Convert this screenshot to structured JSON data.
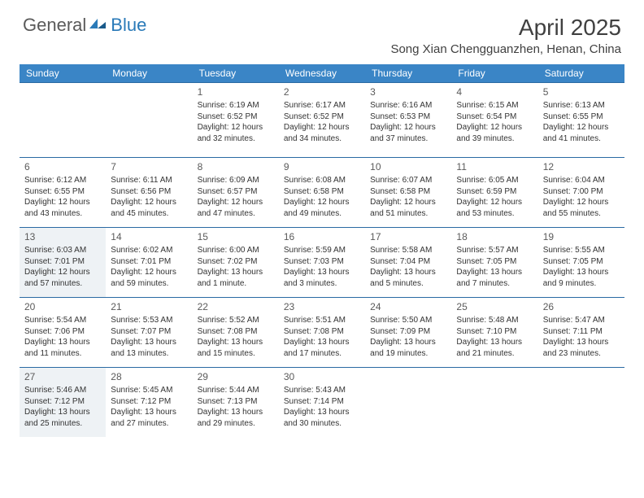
{
  "logo": {
    "general": "General",
    "blue": "Blue"
  },
  "title": "April 2025",
  "subtitle": "Song Xian Chengguanzhen, Henan, China",
  "colors": {
    "header_bg": "#3a85c6",
    "border": "#2a6aa3",
    "highlight_bg": "#eef2f5",
    "text": "#333333",
    "title_text": "#404040"
  },
  "day_headers": [
    "Sunday",
    "Monday",
    "Tuesday",
    "Wednesday",
    "Thursday",
    "Friday",
    "Saturday"
  ],
  "weeks": [
    [
      null,
      null,
      {
        "n": "1",
        "sr": "Sunrise: 6:19 AM",
        "ss": "Sunset: 6:52 PM",
        "dl": "Daylight: 12 hours and 32 minutes."
      },
      {
        "n": "2",
        "sr": "Sunrise: 6:17 AM",
        "ss": "Sunset: 6:52 PM",
        "dl": "Daylight: 12 hours and 34 minutes."
      },
      {
        "n": "3",
        "sr": "Sunrise: 6:16 AM",
        "ss": "Sunset: 6:53 PM",
        "dl": "Daylight: 12 hours and 37 minutes."
      },
      {
        "n": "4",
        "sr": "Sunrise: 6:15 AM",
        "ss": "Sunset: 6:54 PM",
        "dl": "Daylight: 12 hours and 39 minutes."
      },
      {
        "n": "5",
        "sr": "Sunrise: 6:13 AM",
        "ss": "Sunset: 6:55 PM",
        "dl": "Daylight: 12 hours and 41 minutes."
      }
    ],
    [
      {
        "n": "6",
        "sr": "Sunrise: 6:12 AM",
        "ss": "Sunset: 6:55 PM",
        "dl": "Daylight: 12 hours and 43 minutes."
      },
      {
        "n": "7",
        "sr": "Sunrise: 6:11 AM",
        "ss": "Sunset: 6:56 PM",
        "dl": "Daylight: 12 hours and 45 minutes."
      },
      {
        "n": "8",
        "sr": "Sunrise: 6:09 AM",
        "ss": "Sunset: 6:57 PM",
        "dl": "Daylight: 12 hours and 47 minutes."
      },
      {
        "n": "9",
        "sr": "Sunrise: 6:08 AM",
        "ss": "Sunset: 6:58 PM",
        "dl": "Daylight: 12 hours and 49 minutes."
      },
      {
        "n": "10",
        "sr": "Sunrise: 6:07 AM",
        "ss": "Sunset: 6:58 PM",
        "dl": "Daylight: 12 hours and 51 minutes."
      },
      {
        "n": "11",
        "sr": "Sunrise: 6:05 AM",
        "ss": "Sunset: 6:59 PM",
        "dl": "Daylight: 12 hours and 53 minutes."
      },
      {
        "n": "12",
        "sr": "Sunrise: 6:04 AM",
        "ss": "Sunset: 7:00 PM",
        "dl": "Daylight: 12 hours and 55 minutes."
      }
    ],
    [
      {
        "n": "13",
        "sr": "Sunrise: 6:03 AM",
        "ss": "Sunset: 7:01 PM",
        "dl": "Daylight: 12 hours and 57 minutes.",
        "hl": true
      },
      {
        "n": "14",
        "sr": "Sunrise: 6:02 AM",
        "ss": "Sunset: 7:01 PM",
        "dl": "Daylight: 12 hours and 59 minutes."
      },
      {
        "n": "15",
        "sr": "Sunrise: 6:00 AM",
        "ss": "Sunset: 7:02 PM",
        "dl": "Daylight: 13 hours and 1 minute."
      },
      {
        "n": "16",
        "sr": "Sunrise: 5:59 AM",
        "ss": "Sunset: 7:03 PM",
        "dl": "Daylight: 13 hours and 3 minutes."
      },
      {
        "n": "17",
        "sr": "Sunrise: 5:58 AM",
        "ss": "Sunset: 7:04 PM",
        "dl": "Daylight: 13 hours and 5 minutes."
      },
      {
        "n": "18",
        "sr": "Sunrise: 5:57 AM",
        "ss": "Sunset: 7:05 PM",
        "dl": "Daylight: 13 hours and 7 minutes."
      },
      {
        "n": "19",
        "sr": "Sunrise: 5:55 AM",
        "ss": "Sunset: 7:05 PM",
        "dl": "Daylight: 13 hours and 9 minutes."
      }
    ],
    [
      {
        "n": "20",
        "sr": "Sunrise: 5:54 AM",
        "ss": "Sunset: 7:06 PM",
        "dl": "Daylight: 13 hours and 11 minutes."
      },
      {
        "n": "21",
        "sr": "Sunrise: 5:53 AM",
        "ss": "Sunset: 7:07 PM",
        "dl": "Daylight: 13 hours and 13 minutes."
      },
      {
        "n": "22",
        "sr": "Sunrise: 5:52 AM",
        "ss": "Sunset: 7:08 PM",
        "dl": "Daylight: 13 hours and 15 minutes."
      },
      {
        "n": "23",
        "sr": "Sunrise: 5:51 AM",
        "ss": "Sunset: 7:08 PM",
        "dl": "Daylight: 13 hours and 17 minutes."
      },
      {
        "n": "24",
        "sr": "Sunrise: 5:50 AM",
        "ss": "Sunset: 7:09 PM",
        "dl": "Daylight: 13 hours and 19 minutes."
      },
      {
        "n": "25",
        "sr": "Sunrise: 5:48 AM",
        "ss": "Sunset: 7:10 PM",
        "dl": "Daylight: 13 hours and 21 minutes."
      },
      {
        "n": "26",
        "sr": "Sunrise: 5:47 AM",
        "ss": "Sunset: 7:11 PM",
        "dl": "Daylight: 13 hours and 23 minutes."
      }
    ],
    [
      {
        "n": "27",
        "sr": "Sunrise: 5:46 AM",
        "ss": "Sunset: 7:12 PM",
        "dl": "Daylight: 13 hours and 25 minutes.",
        "hl": true
      },
      {
        "n": "28",
        "sr": "Sunrise: 5:45 AM",
        "ss": "Sunset: 7:12 PM",
        "dl": "Daylight: 13 hours and 27 minutes."
      },
      {
        "n": "29",
        "sr": "Sunrise: 5:44 AM",
        "ss": "Sunset: 7:13 PM",
        "dl": "Daylight: 13 hours and 29 minutes."
      },
      {
        "n": "30",
        "sr": "Sunrise: 5:43 AM",
        "ss": "Sunset: 7:14 PM",
        "dl": "Daylight: 13 hours and 30 minutes."
      },
      null,
      null,
      null
    ]
  ]
}
